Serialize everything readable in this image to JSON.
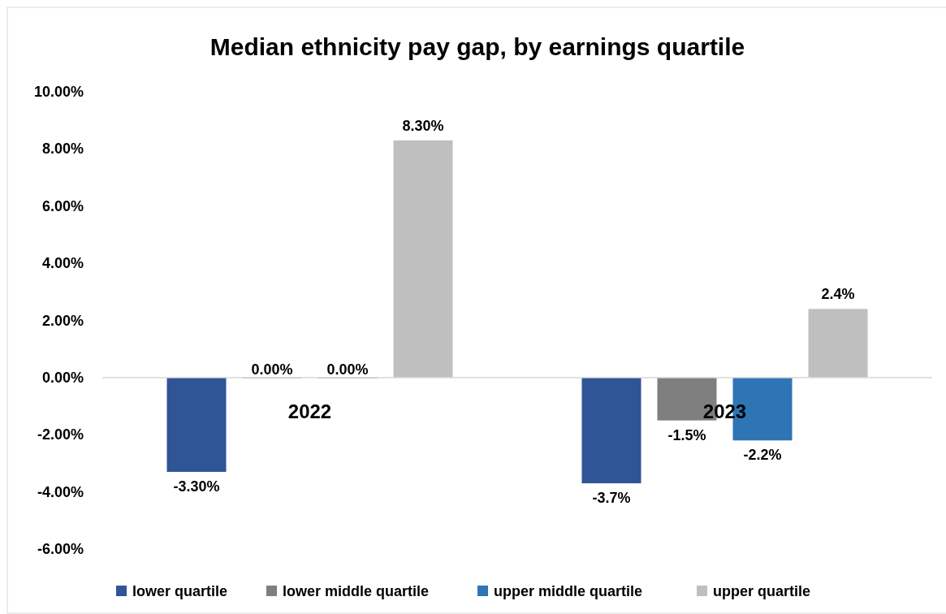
{
  "chart_data": {
    "type": "bar",
    "title": "Median ethnicity pay gap, by earnings quartile",
    "categories": [
      "2022",
      "2023"
    ],
    "series": [
      {
        "name": "lower quartile",
        "color": "#2f5597",
        "values": [
          -3.3,
          -3.7
        ],
        "value_labels": [
          "-3.30%",
          "-3.7%"
        ]
      },
      {
        "name": "lower middle quartile",
        "color": "#7f7f7f",
        "values": [
          0,
          -1.5
        ],
        "value_labels": [
          "0.00%",
          "-1.5%"
        ]
      },
      {
        "name": "upper middle quartile",
        "color": "#2e75b6",
        "values": [
          0,
          -2.2
        ],
        "value_labels": [
          "0.00%",
          "-2.2%"
        ]
      },
      {
        "name": "upper quartile",
        "color": "#bfbfbf",
        "values": [
          8.3,
          2.4
        ],
        "value_labels": [
          "8.30%",
          "2.4%"
        ]
      }
    ],
    "ylim": [
      -6,
      10
    ],
    "yticks": [
      {
        "value": -6,
        "label": "-6.00%"
      },
      {
        "value": -4,
        "label": "-4.00%"
      },
      {
        "value": -2,
        "label": "-2.00%"
      },
      {
        "value": 0,
        "label": "0.00%"
      },
      {
        "value": 2,
        "label": "2.00%"
      },
      {
        "value": 4,
        "label": "4.00%"
      },
      {
        "value": 6,
        "label": "6.00%"
      },
      {
        "value": 8,
        "label": "8.00%"
      },
      {
        "value": 10,
        "label": "10.00%"
      }
    ],
    "legend": "bottom",
    "grid": false
  }
}
